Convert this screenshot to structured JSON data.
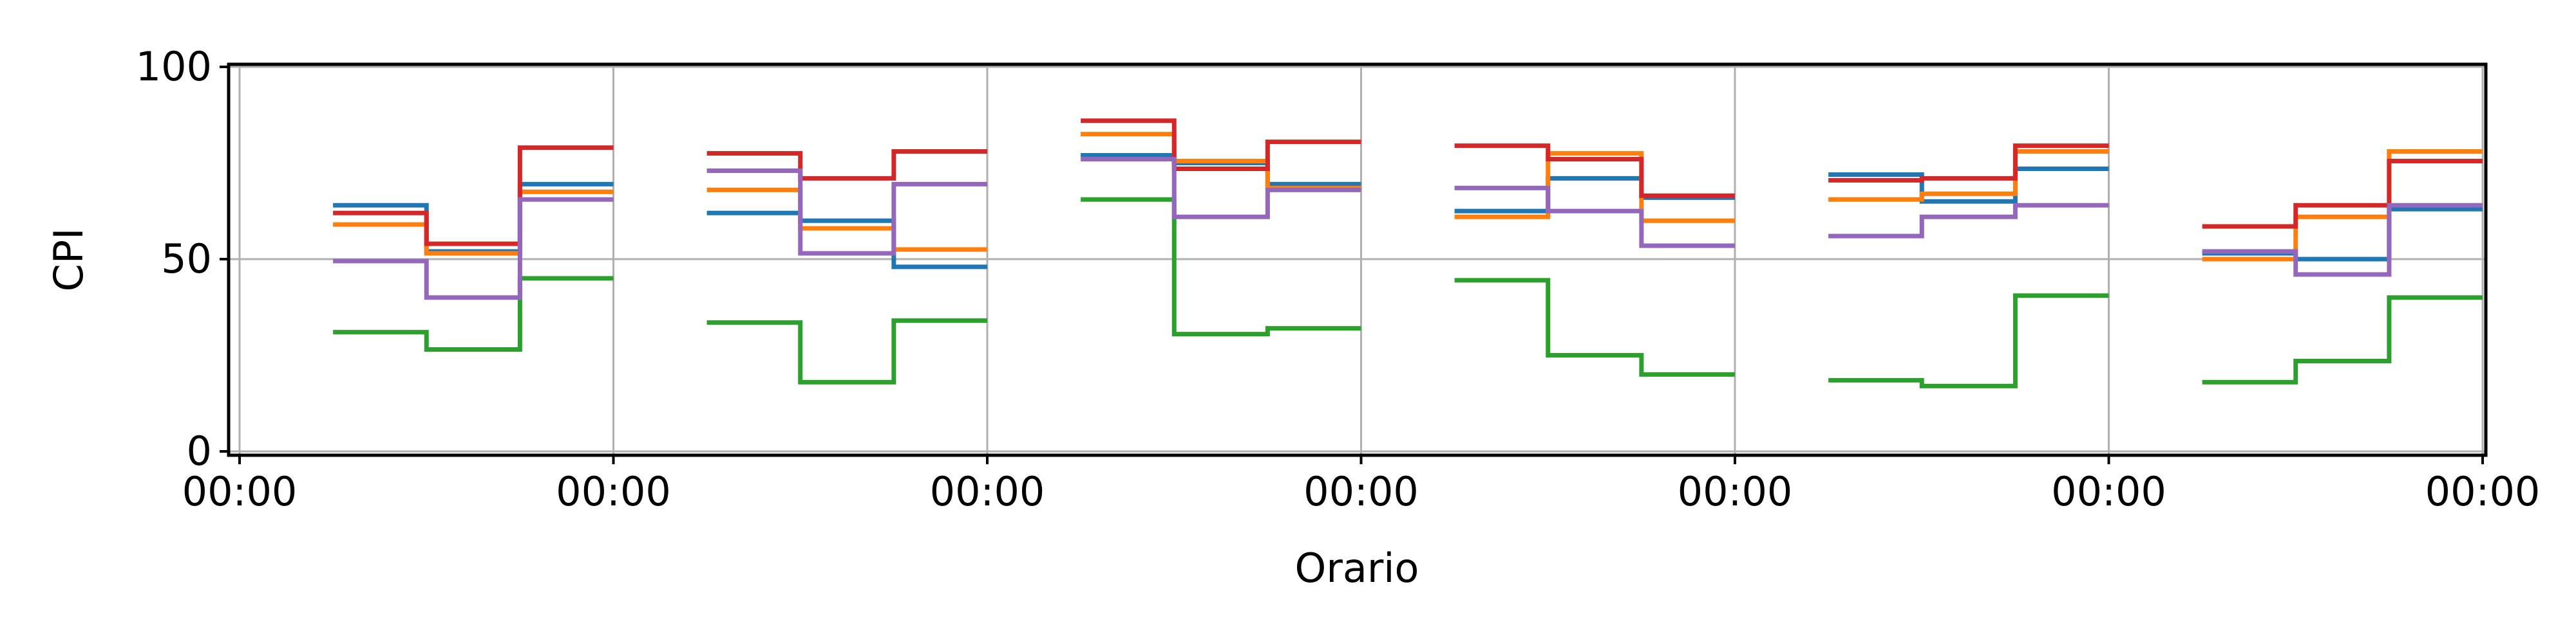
{
  "chart_data": {
    "type": "line",
    "drawstyle": "steps-post",
    "title": "",
    "xlabel": "Orario",
    "ylabel": "CPI",
    "xlim": [
      0,
      6
    ],
    "ylim": [
      0,
      100
    ],
    "grid": true,
    "legend": "none",
    "x_ticks": [
      0,
      1,
      2,
      3,
      4,
      5,
      6
    ],
    "x_tick_labels": [
      "00:00",
      "00:00",
      "00:00",
      "00:00",
      "00:00",
      "00:00",
      "00:00"
    ],
    "y_ticks": [
      0,
      50,
      100
    ],
    "y_tick_labels": [
      "0",
      "50",
      "100"
    ],
    "segment_x": [
      0.25,
      0.5,
      0.75,
      1.0
    ],
    "segments": [
      {
        "series": [
          {
            "color": "#1f77b4",
            "values": [
              64,
              52,
              69.5
            ]
          },
          {
            "color": "#ff7f0e",
            "values": [
              59,
              51.5,
              67.5
            ]
          },
          {
            "color": "#2ca02c",
            "values": [
              31,
              26.5,
              45
            ]
          },
          {
            "color": "#d62728",
            "values": [
              62,
              54,
              79
            ]
          },
          {
            "color": "#9467bd",
            "values": [
              49.5,
              40,
              65.5
            ]
          }
        ]
      },
      {
        "series": [
          {
            "color": "#1f77b4",
            "values": [
              62,
              60,
              48
            ]
          },
          {
            "color": "#ff7f0e",
            "values": [
              68,
              58,
              52.5
            ]
          },
          {
            "color": "#2ca02c",
            "values": [
              33.5,
              18,
              34
            ]
          },
          {
            "color": "#d62728",
            "values": [
              77.5,
              71,
              78
            ]
          },
          {
            "color": "#9467bd",
            "values": [
              73,
              51.5,
              69.5
            ]
          }
        ]
      },
      {
        "series": [
          {
            "color": "#1f77b4",
            "values": [
              77,
              75,
              69.5
            ]
          },
          {
            "color": "#ff7f0e",
            "values": [
              82.5,
              75.5,
              68.5
            ]
          },
          {
            "color": "#2ca02c",
            "values": [
              65.5,
              30.5,
              32
            ]
          },
          {
            "color": "#d62728",
            "values": [
              86,
              73.5,
              80.5
            ]
          },
          {
            "color": "#9467bd",
            "values": [
              76,
              61,
              68
            ]
          }
        ]
      },
      {
        "series": [
          {
            "color": "#1f77b4",
            "values": [
              62.5,
              71,
              66
            ]
          },
          {
            "color": "#ff7f0e",
            "values": [
              61,
              77.5,
              60
            ]
          },
          {
            "color": "#2ca02c",
            "values": [
              44.5,
              25,
              20
            ]
          },
          {
            "color": "#d62728",
            "values": [
              79.5,
              76,
              66.5
            ]
          },
          {
            "color": "#9467bd",
            "values": [
              68.5,
              62.5,
              53.5
            ]
          }
        ]
      },
      {
        "series": [
          {
            "color": "#1f77b4",
            "values": [
              72,
              65,
              73.5
            ]
          },
          {
            "color": "#ff7f0e",
            "values": [
              65.5,
              67,
              78
            ]
          },
          {
            "color": "#2ca02c",
            "values": [
              18.5,
              17,
              40.5
            ]
          },
          {
            "color": "#d62728",
            "values": [
              70.5,
              71,
              79.5
            ]
          },
          {
            "color": "#9467bd",
            "values": [
              56,
              61,
              64
            ]
          }
        ]
      },
      {
        "series": [
          {
            "color": "#1f77b4",
            "values": [
              51.5,
              50,
              63
            ]
          },
          {
            "color": "#ff7f0e",
            "values": [
              50,
              61,
              78
            ]
          },
          {
            "color": "#2ca02c",
            "values": [
              18,
              23.5,
              40
            ]
          },
          {
            "color": "#d62728",
            "values": [
              58.5,
              64,
              75.5
            ]
          },
          {
            "color": "#9467bd",
            "values": [
              52,
              46,
              64
            ]
          }
        ]
      }
    ]
  }
}
